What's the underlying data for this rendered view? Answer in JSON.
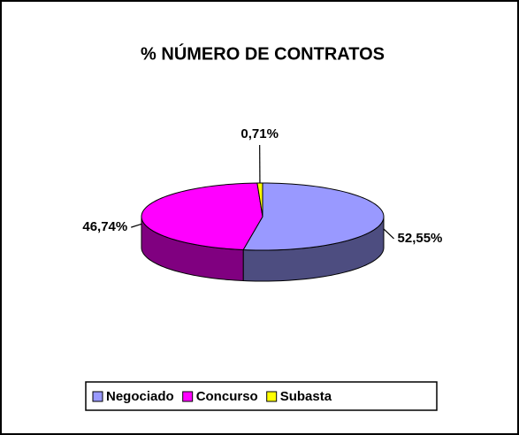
{
  "chart_data": {
    "type": "pie3d",
    "title": "% NÚMERO DE CONTRATOS",
    "categories": [
      "Negociado",
      "Concurso",
      "Subasta"
    ],
    "values": [
      52.55,
      46.74,
      0.71
    ],
    "value_labels": [
      "52,55%",
      "46,74%",
      "0,71%"
    ],
    "colors": [
      "#9999ff",
      "#ff00ff",
      "#ffff00"
    ],
    "legend": "bottom"
  }
}
